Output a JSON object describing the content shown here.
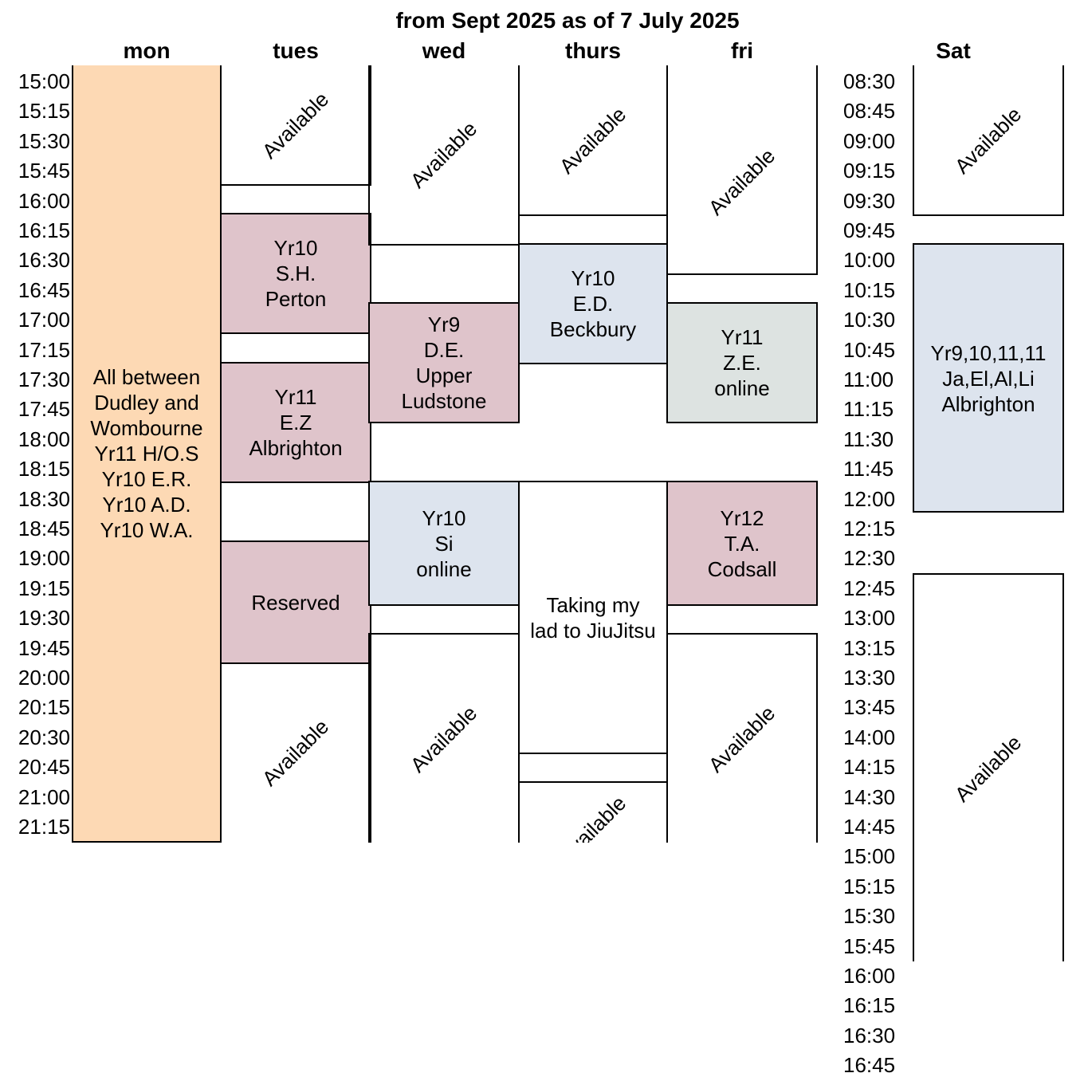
{
  "title": "from Sept 2025 as of 7 July 2025",
  "days": [
    "mon",
    "tues",
    "wed",
    "thurs",
    "fri",
    "Sat"
  ],
  "weekday_times": [
    "15:00",
    "15:15",
    "15:30",
    "15:45",
    "16:00",
    "16:15",
    "16:30",
    "16:45",
    "17:00",
    "17:15",
    "17:30",
    "17:45",
    "18:00",
    "18:15",
    "18:30",
    "18:45",
    "19:00",
    "19:15",
    "19:30",
    "19:45",
    "20:00",
    "20:15",
    "20:30",
    "20:45",
    "21:00",
    "21:15"
  ],
  "saturday_times": [
    "08:30",
    "08:45",
    "09:00",
    "09:15",
    "09:30",
    "09:45",
    "10:00",
    "10:15",
    "10:30",
    "10:45",
    "11:00",
    "11:15",
    "11:30",
    "11:45",
    "12:00",
    "12:15",
    "12:30",
    "12:45",
    "13:00",
    "13:15",
    "13:30",
    "13:45",
    "14:00",
    "14:15",
    "14:30",
    "14:45",
    "15:00",
    "15:15",
    "15:30",
    "15:45",
    "16:00",
    "16:15",
    "16:30",
    "16:45"
  ],
  "colors": {
    "monday": "#fdd9b4",
    "pink": "#dfc4cb",
    "blue": "#dde4ee",
    "grey_green": "#dde3e1"
  },
  "blocks": {
    "mon_all": "All between\nDudley and\nWombourne\nYr11 H/O.S\nYr10 E.R.\nYr10 A.D.\nYr10 W.A.",
    "tue_avail_1": "Available",
    "tue_yr10": "Yr10\nS.H.\nPerton",
    "tue_yr11": "Yr11\nE.Z\nAlbrighton",
    "tue_reserved": "Reserved",
    "tue_avail_2": "Available",
    "wed_avail_1": "Available",
    "wed_yr9": "Yr9\nD.E.\nUpper\nLudstone",
    "wed_yr10": "Yr10\nSi\nonline",
    "wed_avail_2": "Available",
    "thu_avail_1": "Available",
    "thu_yr10": "Yr10\nE.D.\nBeckbury",
    "thu_jiujitsu": "Taking my\nlad to JiuJitsu",
    "thu_avail_2": "Available",
    "fri_avail_1": "Available",
    "fri_yr11": "Yr11\nZ.E.\nonline",
    "fri_yr12": "Yr12\nT.A.\nCodsall",
    "fri_avail_2": "Available",
    "sat_avail_1": "Available",
    "sat_group": "Yr9,10,11,11\nJa,El,Al,Li\nAlbrighton",
    "sat_avail_2": "Available"
  }
}
